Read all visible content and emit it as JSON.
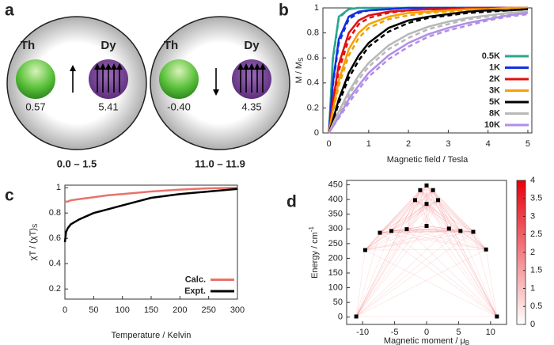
{
  "panel_labels": [
    "a",
    "b",
    "c",
    "d"
  ],
  "diagram": {
    "ions": [
      {
        "left_label": "Th",
        "right_label": "Dy",
        "left_value": "0.57",
        "right_value": "5.41",
        "range": "0.0 – 1.5"
      },
      {
        "left_label": "Th",
        "right_label": "Dy",
        "left_value": "-0.40",
        "right_value": "4.35",
        "range": "11.0 – 11.9"
      }
    ]
  },
  "chart_data": [
    {
      "type": "line",
      "xlabel": "Magnetic field / Tesla",
      "ylabel": "M / M",
      "ylabel_sub": "S",
      "x": [
        0,
        0.1,
        0.25,
        0.5,
        0.75,
        1,
        1.5,
        2,
        2.5,
        3,
        3.5,
        4,
        4.5,
        5
      ],
      "xlim": [
        -0.15,
        5.1
      ],
      "xticks": [
        0,
        1,
        2,
        3,
        4,
        5
      ],
      "ylim": [
        0,
        1
      ],
      "yticks": [
        0,
        0.2,
        0.4,
        0.6,
        0.8,
        1
      ],
      "legend": "lower right",
      "series": [
        {
          "name": "0.5K",
          "color": "#2ca58d",
          "values": [
            0,
            0.6,
            0.93,
            0.99,
            1,
            1,
            1,
            1,
            1,
            1,
            1,
            1,
            1,
            1
          ],
          "dashed_values": [
            0,
            0.58,
            0.92,
            0.99,
            1,
            1,
            1,
            1,
            1,
            1,
            1,
            1,
            1,
            1
          ]
        },
        {
          "name": "1K",
          "color": "#1030e0",
          "values": [
            0,
            0.4,
            0.75,
            0.93,
            0.97,
            0.98,
            0.99,
            1,
            1,
            1,
            1,
            1,
            1,
            1
          ],
          "dashed_values": [
            0,
            0.38,
            0.72,
            0.91,
            0.96,
            0.98,
            0.99,
            1,
            1,
            1,
            1,
            1,
            1,
            1
          ]
        },
        {
          "name": "2K",
          "color": "#e01010",
          "values": [
            0,
            0.25,
            0.55,
            0.8,
            0.9,
            0.94,
            0.97,
            0.98,
            0.99,
            0.99,
            1,
            1,
            1,
            1
          ],
          "dashed_values": [
            0,
            0.22,
            0.5,
            0.75,
            0.87,
            0.92,
            0.96,
            0.98,
            0.99,
            0.99,
            1,
            1,
            1,
            1
          ]
        },
        {
          "name": "3K",
          "color": "#f5a000",
          "values": [
            0,
            0.18,
            0.42,
            0.67,
            0.8,
            0.87,
            0.93,
            0.96,
            0.97,
            0.98,
            0.99,
            0.99,
            1,
            1
          ],
          "dashed_values": [
            0,
            0.16,
            0.38,
            0.62,
            0.76,
            0.84,
            0.91,
            0.94,
            0.96,
            0.97,
            0.98,
            0.99,
            1,
            1
          ]
        },
        {
          "name": "5K",
          "color": "#000000",
          "values": [
            0,
            0.1,
            0.27,
            0.48,
            0.62,
            0.72,
            0.84,
            0.9,
            0.93,
            0.95,
            0.97,
            0.98,
            0.98,
            0.99
          ],
          "dashed_values": [
            0,
            0.09,
            0.24,
            0.44,
            0.58,
            0.69,
            0.81,
            0.88,
            0.92,
            0.94,
            0.96,
            0.97,
            0.98,
            0.99
          ]
        },
        {
          "name": "8K",
          "color": "#b8b8b8",
          "values": [
            0,
            0.07,
            0.17,
            0.33,
            0.46,
            0.56,
            0.7,
            0.79,
            0.85,
            0.89,
            0.92,
            0.94,
            0.96,
            0.97
          ],
          "dashed_values": [
            0,
            0.06,
            0.15,
            0.3,
            0.43,
            0.53,
            0.67,
            0.76,
            0.83,
            0.87,
            0.91,
            0.93,
            0.95,
            0.97
          ]
        },
        {
          "name": "10K",
          "color": "#b08ee8",
          "values": [
            0,
            0.05,
            0.13,
            0.27,
            0.38,
            0.48,
            0.62,
            0.72,
            0.79,
            0.84,
            0.88,
            0.91,
            0.94,
            0.96
          ],
          "dashed_values": [
            0,
            0.05,
            0.12,
            0.24,
            0.35,
            0.45,
            0.59,
            0.69,
            0.77,
            0.82,
            0.86,
            0.9,
            0.93,
            0.95
          ]
        }
      ]
    },
    {
      "type": "line",
      "xlabel": "Temperature / Kelvin",
      "ylabel": "χT / (χT)",
      "ylabel_sub": "S",
      "x": [
        0,
        2,
        5,
        10,
        25,
        50,
        75,
        100,
        150,
        200,
        250,
        300
      ],
      "xlim": [
        0,
        300
      ],
      "xticks": [
        0,
        50,
        100,
        150,
        200,
        250,
        300
      ],
      "ylim": [
        0.12,
        1.02
      ],
      "yticks": [
        0.2,
        0.4,
        0.6,
        0.8,
        1
      ],
      "legend": "lower right",
      "series": [
        {
          "name": "Calc.",
          "color": "#e8736b",
          "values": [
            0.89,
            0.89,
            0.89,
            0.9,
            0.91,
            0.925,
            0.94,
            0.95,
            0.97,
            0.985,
            0.995,
            1
          ]
        },
        {
          "name": "Expt.",
          "color": "#000000",
          "values": [
            0.57,
            0.65,
            0.68,
            0.71,
            0.75,
            0.8,
            0.83,
            0.86,
            0.92,
            0.95,
            0.97,
            0.99
          ]
        }
      ]
    },
    {
      "type": "scatter",
      "xlabel": "Magnetic moment / μ",
      "xlabel_sub": "B",
      "ylabel": "Energy / cm",
      "ylabel_sup": "-1",
      "x": [
        -11,
        -9.6,
        -7.3,
        -5.5,
        -3.1,
        0,
        3.5,
        5.3,
        7.3,
        9.3,
        11,
        -1.8,
        1.8,
        -1,
        1,
        0,
        0
      ],
      "values": [
        2,
        228,
        287,
        293,
        299,
        310,
        301,
        293,
        290,
        230,
        2,
        398,
        398,
        432,
        432,
        448,
        385
      ],
      "color": "#000000",
      "xlim": [
        -12.5,
        12.5
      ],
      "xticks": [
        -10,
        -5,
        0,
        5,
        10
      ],
      "ylim": [
        -25,
        465
      ],
      "yticks": [
        0,
        50,
        100,
        150,
        200,
        250,
        300,
        350,
        400,
        450
      ],
      "colorbar": {
        "lim": [
          0,
          4
        ],
        "ticks": [
          0,
          0.5,
          1,
          1.5,
          2,
          2.5,
          3,
          3.5,
          4
        ],
        "colors": [
          "#ffffff",
          "#e8000b"
        ]
      }
    }
  ]
}
